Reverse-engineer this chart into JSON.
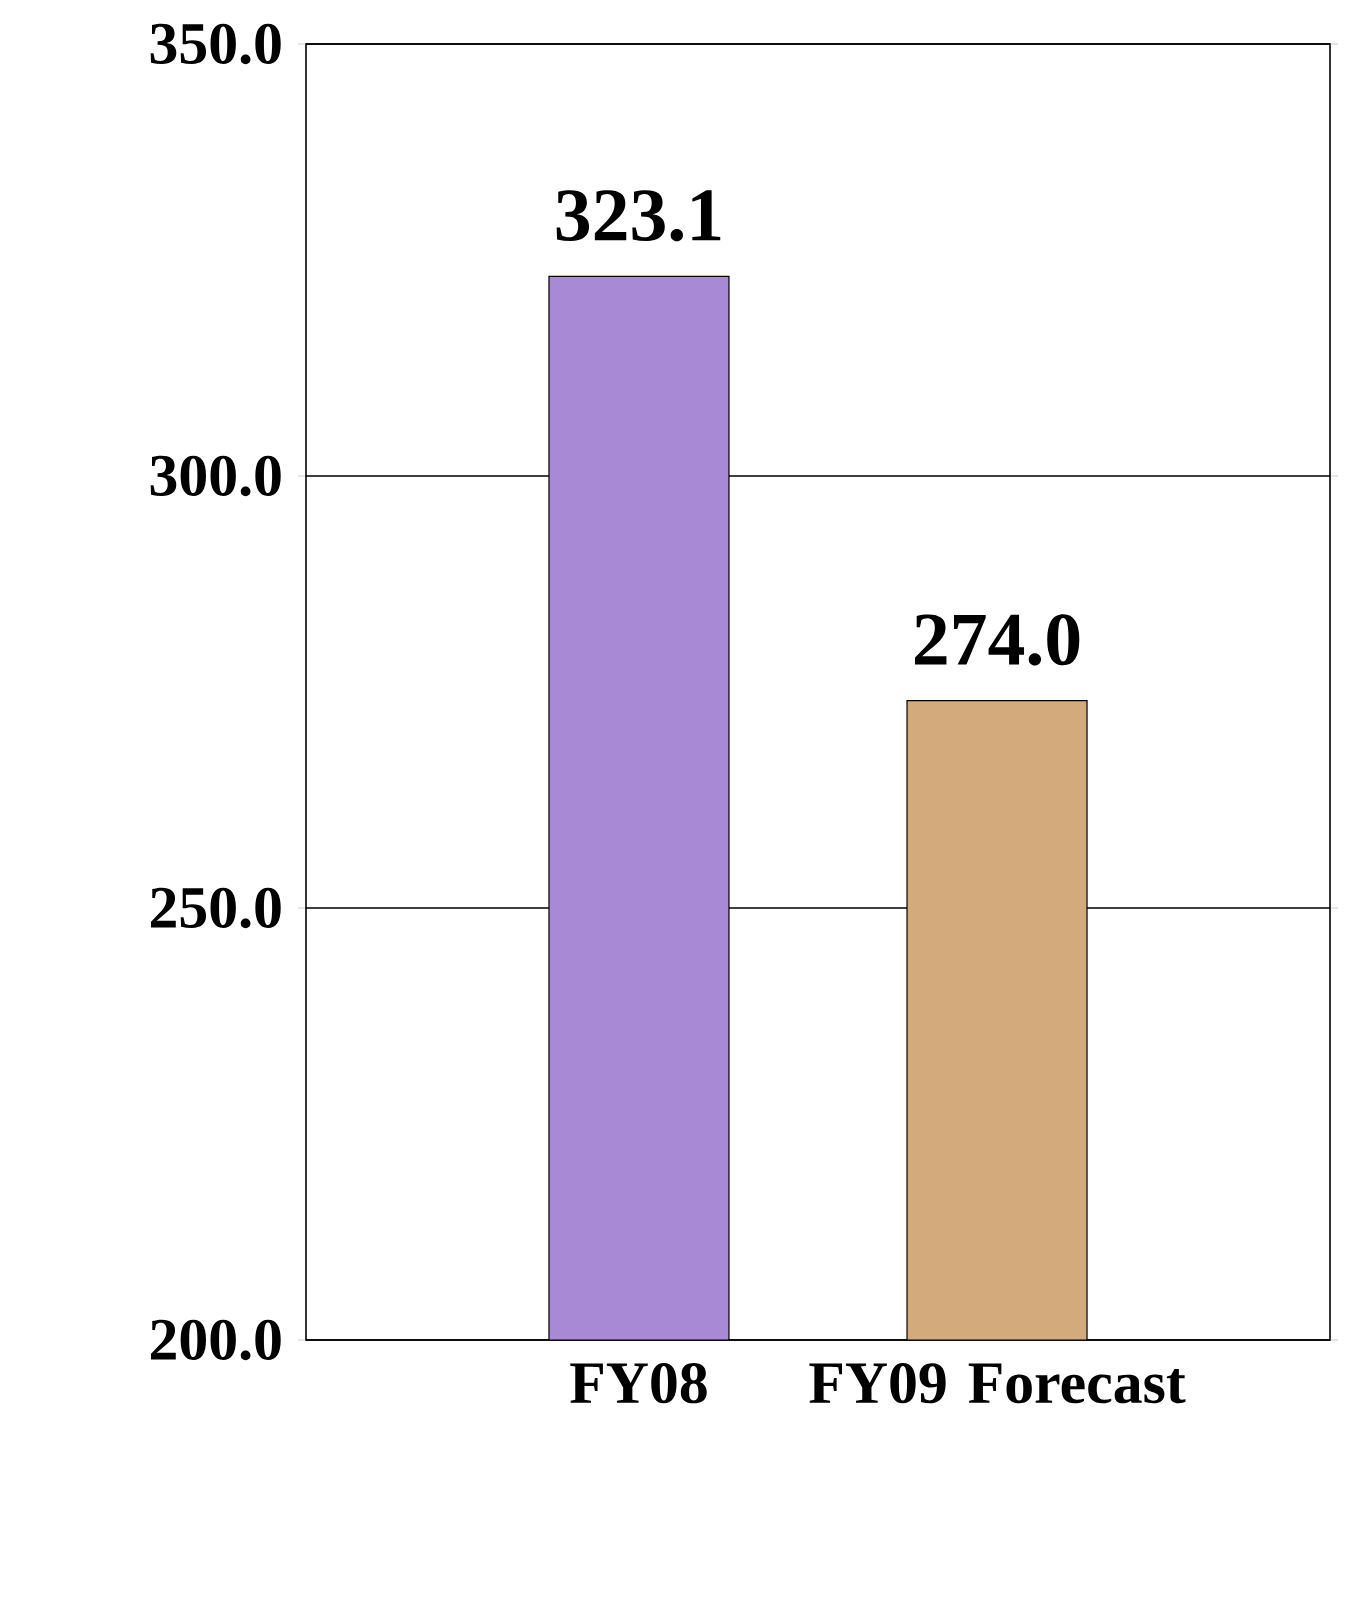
{
  "chart_data": {
    "type": "bar",
    "categories": [
      "FY08",
      "FY09 Forecast"
    ],
    "values": [
      323.1,
      274.0
    ],
    "value_labels": [
      "323.1",
      "274.0"
    ],
    "colors": [
      "#a889d6",
      "#d2aa7c"
    ],
    "ylim": [
      200,
      350
    ],
    "yticks": [
      {
        "value": 200,
        "label": "200.0"
      },
      {
        "value": 250,
        "label": "250.0"
      },
      {
        "value": 300,
        "label": "300.0"
      },
      {
        "value": 350,
        "label": "350.0"
      }
    ],
    "grid": "y"
  }
}
